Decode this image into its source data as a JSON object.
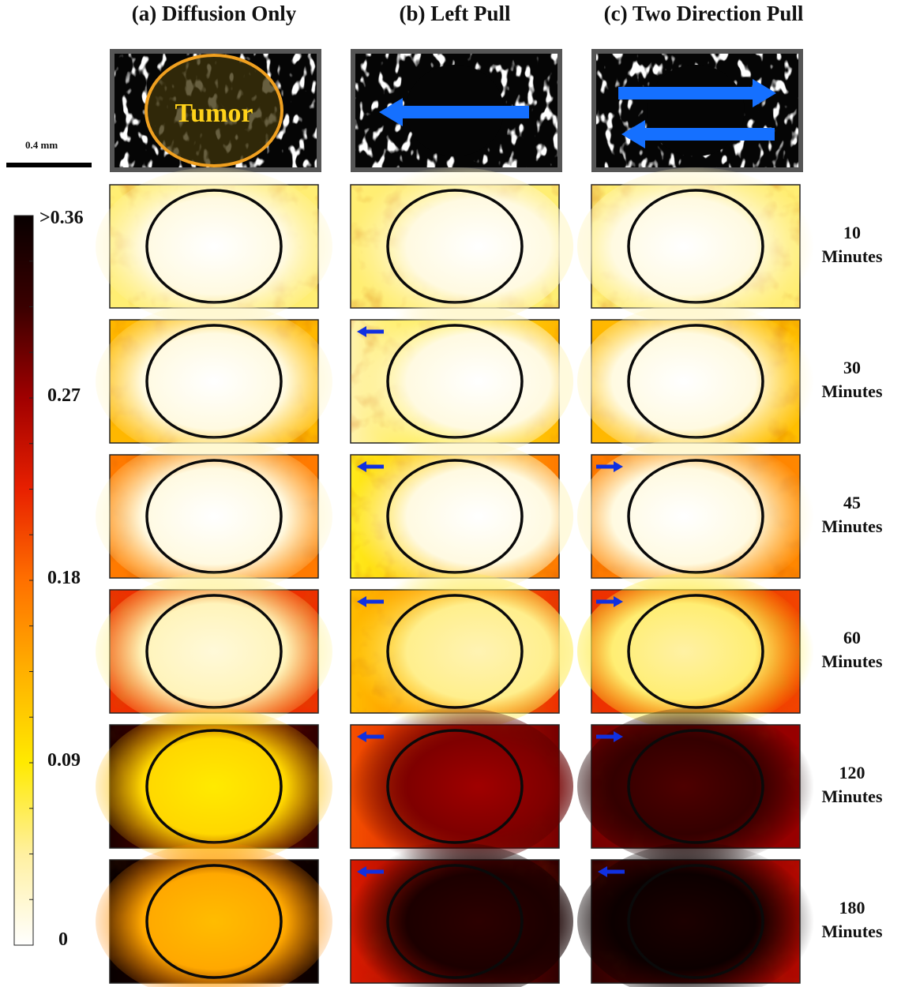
{
  "columns": [
    {
      "title": "(a) Diffusion Only",
      "mode": "diffusion"
    },
    {
      "title": "(b) Left Pull",
      "mode": "left"
    },
    {
      "title": "(c) Two Direction Pull",
      "mode": "two"
    }
  ],
  "tumor_label": "Tumor",
  "scale_bar_label": "0.4  mm",
  "rows": [
    {
      "time": "10",
      "unit": "Minutes",
      "level": 0.18
    },
    {
      "time": "30",
      "unit": "Minutes",
      "level": 0.36
    },
    {
      "time": "45",
      "unit": "Minutes",
      "level": 0.48
    },
    {
      "time": "60",
      "unit": "Minutes",
      "level": 0.6
    },
    {
      "time": "120",
      "unit": "Minutes",
      "level": 0.8
    },
    {
      "time": "180",
      "unit": "Minutes",
      "level": 0.9
    }
  ],
  "colorbar": {
    "labels": [
      ">0.36",
      "0.27",
      "0.18",
      "0.09",
      "0"
    ],
    "stops": [
      "#ffffff",
      "#fff0a0",
      "#ffea00",
      "#ffb000",
      "#ff7000",
      "#e82000",
      "#a00000",
      "#3a0000",
      "#080000"
    ]
  },
  "arrows": {
    "left": [
      "none",
      "left",
      "left",
      "left",
      "left",
      "left"
    ],
    "two": [
      "none",
      "none",
      "right",
      "right",
      "right",
      "left"
    ]
  },
  "colors": {
    "arrow": "#1030e0",
    "tumor_outline": "#f0a020",
    "tumor_text": "#ffd21a",
    "big_arrow": "#1570ff"
  }
}
